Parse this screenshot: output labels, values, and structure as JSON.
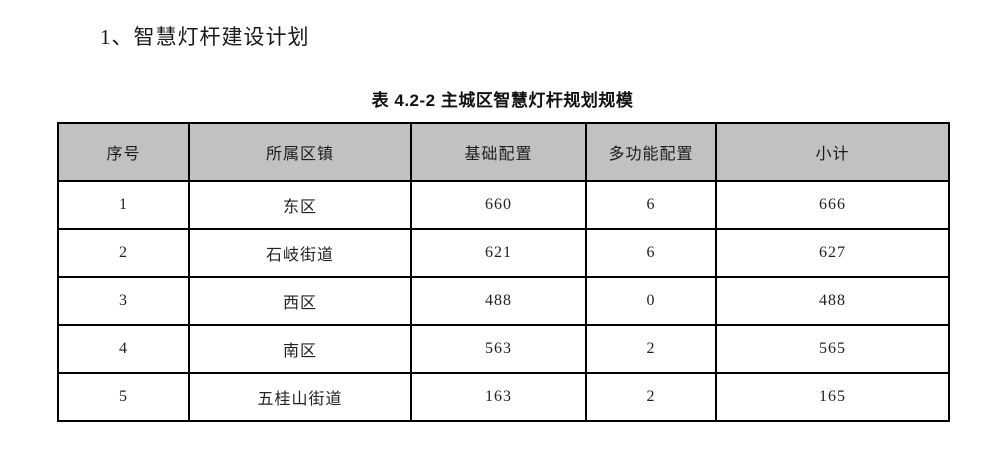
{
  "page": {
    "background": "#ffffff",
    "text_color": "#1f1f1f"
  },
  "document": {
    "heading": "1、智慧灯杆建设计划",
    "table_caption": "表 4.2-2 主城区智慧灯杆规划规模"
  },
  "table": {
    "header_bg": "#c1c1c1",
    "border_color": "#000000",
    "columns": [
      "序号",
      "所属区镇",
      "基础配置",
      "多功能配置",
      "小计"
    ],
    "rows": [
      {
        "seq": "1",
        "district": "东区",
        "basic": "660",
        "multi": "6",
        "subtotal": "666"
      },
      {
        "seq": "2",
        "district": "石岐街道",
        "basic": "621",
        "multi": "6",
        "subtotal": "627"
      },
      {
        "seq": "3",
        "district": "西区",
        "basic": "488",
        "multi": "0",
        "subtotal": "488"
      },
      {
        "seq": "4",
        "district": "南区",
        "basic": "563",
        "multi": "2",
        "subtotal": "565"
      },
      {
        "seq": "5",
        "district": "五桂山街道",
        "basic": "163",
        "multi": "2",
        "subtotal": "165"
      }
    ]
  }
}
